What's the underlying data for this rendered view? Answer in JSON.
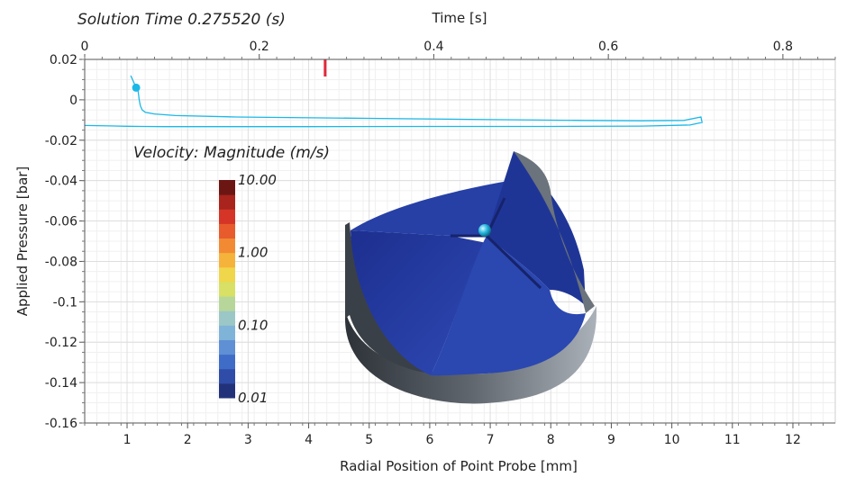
{
  "header": {
    "solution_time": "Solution Time 0.275520 (s)"
  },
  "chart_data": {
    "type": "line",
    "x_axis": {
      "label": "Radial Position of Point Probe [mm]",
      "range": [
        0.3,
        12.7
      ],
      "ticks": [
        "1",
        "2",
        "3",
        "4",
        "5",
        "6",
        "7",
        "8",
        "9",
        "10",
        "11",
        "12"
      ]
    },
    "x2_axis": {
      "label": "Time [s]",
      "range": [
        0,
        0.86
      ],
      "ticks": [
        "0",
        "0.2",
        "0.4",
        "0.6",
        "0.8"
      ]
    },
    "y_axis": {
      "label": "Applied Pressure [bar]",
      "range": [
        -0.16,
        0.02
      ],
      "ticks": [
        "0.02",
        "0",
        "-0.02",
        "-0.04",
        "-0.06",
        "-0.08",
        "-0.1",
        "-0.12",
        "-0.14",
        "-0.16"
      ]
    },
    "grid": true,
    "current_time_marker": 0.2755,
    "series": [
      {
        "color": "#1ab8e8",
        "points": [
          [
            1.06,
            0.012
          ],
          [
            1.12,
            0.008
          ],
          [
            1.18,
            0.005
          ],
          [
            1.2,
            0.0
          ],
          [
            1.22,
            -0.003
          ],
          [
            1.25,
            -0.005
          ],
          [
            1.3,
            -0.0062
          ],
          [
            1.45,
            -0.007
          ],
          [
            1.8,
            -0.0078
          ],
          [
            2.8,
            -0.0085
          ],
          [
            5.0,
            -0.0092
          ],
          [
            7.0,
            -0.0098
          ],
          [
            8.5,
            -0.0102
          ],
          [
            9.5,
            -0.0104
          ],
          [
            10.2,
            -0.0102
          ],
          [
            10.48,
            -0.0085
          ],
          [
            10.5,
            -0.0112
          ],
          [
            10.3,
            -0.0125
          ],
          [
            9.5,
            -0.013
          ],
          [
            8.0,
            -0.0132
          ],
          [
            6.0,
            -0.0132
          ],
          [
            4.0,
            -0.0133
          ],
          [
            2.5,
            -0.0133
          ],
          [
            1.6,
            -0.0133
          ],
          [
            1.25,
            -0.0132
          ],
          [
            1.0,
            -0.0131
          ],
          [
            0.5,
            -0.0128
          ],
          [
            0.3,
            -0.0127
          ]
        ]
      }
    ],
    "current_point": [
      1.15,
      0.006
    ]
  },
  "legend": {
    "title": "Velocity: Magnitude (m/s)",
    "labels": [
      "10.00",
      "1.00",
      "0.10",
      "0.01"
    ],
    "colors": [
      "#22327a",
      "#2f4ca8",
      "#3f6cc6",
      "#5f8fd4",
      "#7fb3d8",
      "#9bc7c6",
      "#b7d69a",
      "#d8e065",
      "#f0d64a",
      "#f5b33b",
      "#f28a34",
      "#e85b2c",
      "#d53526",
      "#a8241c",
      "#6b1612"
    ]
  }
}
